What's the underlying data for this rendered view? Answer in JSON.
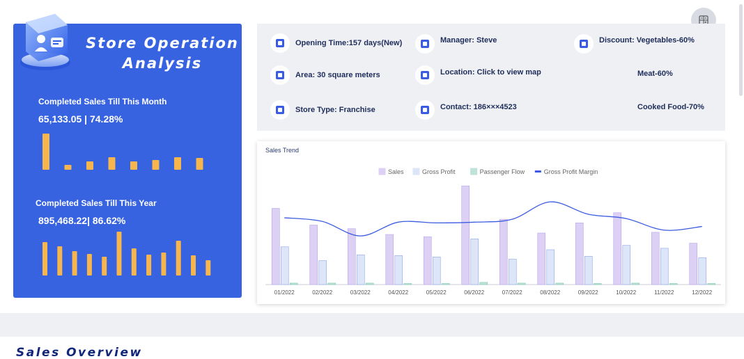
{
  "hero": {
    "title_line1": "Store Operation",
    "title_line2": "Analysis",
    "month": {
      "label": "Completed Sales Till This Month",
      "value": "65,133.05 | 74.28%",
      "bars": [
        52,
        7,
        12,
        18,
        12,
        14,
        18,
        17
      ]
    },
    "year": {
      "label": "Completed Sales Till This Year",
      "value": "895,468.22| 86.62%",
      "bars": [
        48,
        42,
        35,
        31,
        27,
        63,
        39,
        30,
        33,
        50,
        29,
        22
      ]
    },
    "bar_color": "#f7b54d",
    "background": "#3762e0"
  },
  "info": {
    "items": [
      {
        "text": "Opening Time:157 days(New)"
      },
      {
        "text": "Area: 30 square meters"
      },
      {
        "text": "Store Type: Franchise"
      },
      {
        "text": "Manager:  Steve"
      },
      {
        "text": "Location: Click to view map"
      },
      {
        "text": "Contact:  186×××4523"
      },
      {
        "text": "Discount:  Vegetables-60%"
      },
      {
        "text": "Meat-60%"
      },
      {
        "text": "Cooked Food-70%"
      }
    ]
  },
  "settings_icon": "grid-settings-icon",
  "chart_data": {
    "type": "bar",
    "title": "Sales Trend",
    "categories": [
      "01/2022",
      "02/2022",
      "03/2022",
      "04/2022",
      "05/2022",
      "06/2022",
      "07/2022",
      "08/2022",
      "09/2022",
      "10/2022",
      "11/2022",
      "12/2022"
    ],
    "series": [
      {
        "name": "Sales",
        "kind": "bar",
        "color": "#dcd0f5",
        "values": [
          105,
          82,
          77,
          69,
          66,
          136,
          90,
          71,
          85,
          99,
          72,
          57
        ]
      },
      {
        "name": "Gross Profit",
        "kind": "bar",
        "color": "#dde5f8",
        "values": [
          52,
          33,
          41,
          40,
          38,
          63,
          35,
          48,
          39,
          54,
          50,
          37
        ]
      },
      {
        "name": "Passenger Flow",
        "kind": "bar",
        "color": "#bfe3d8",
        "values": [
          2,
          2,
          2,
          1,
          1,
          3,
          2,
          2,
          1,
          2,
          1,
          1
        ]
      },
      {
        "name": "Gross Profit Margin",
        "kind": "line",
        "color": "#3b5be0",
        "values": [
          92,
          87,
          67,
          86,
          85,
          86,
          90,
          114,
          97,
          91,
          75,
          80
        ]
      }
    ],
    "ylim": [
      0,
      140
    ]
  },
  "overview": {
    "title": "Sales Overview"
  }
}
